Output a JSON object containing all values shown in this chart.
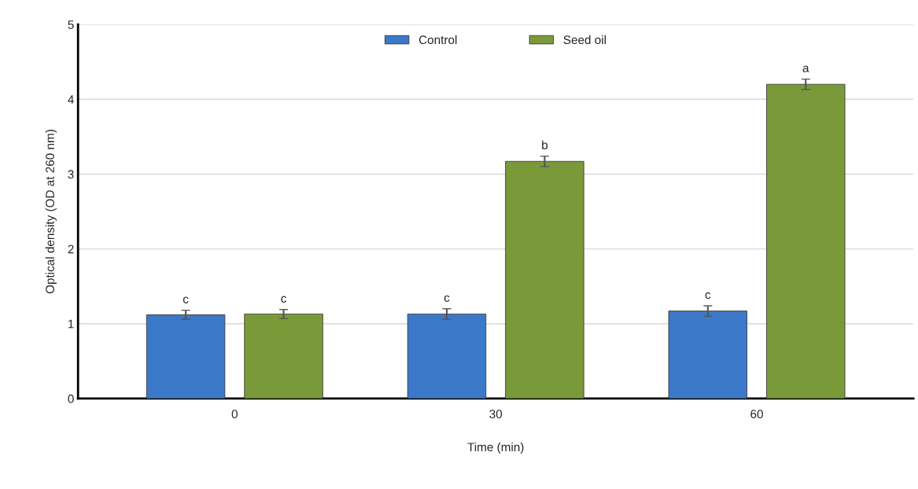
{
  "chart_data": {
    "type": "bar",
    "xlabel": "Time (min)",
    "ylabel": "Optical density (OD at 260 nm)",
    "categories": [
      "0",
      "30",
      "60"
    ],
    "series": [
      {
        "name": "Control",
        "color": "#3c78c8",
        "values": [
          1.12,
          1.13,
          1.17
        ],
        "errors": [
          0.06,
          0.07,
          0.07
        ],
        "value_labels": [
          "c",
          "c",
          "c"
        ]
      },
      {
        "name": "Seed oil",
        "color": "#7a9a3a",
        "values": [
          1.13,
          3.17,
          4.2
        ],
        "errors": [
          0.06,
          0.07,
          0.07
        ],
        "value_labels": [
          "c",
          "b",
          "a"
        ]
      }
    ],
    "ylim": [
      0,
      5
    ],
    "yticks": [
      0,
      1,
      2,
      3,
      4,
      5
    ],
    "grid": "y",
    "legend": "top"
  }
}
